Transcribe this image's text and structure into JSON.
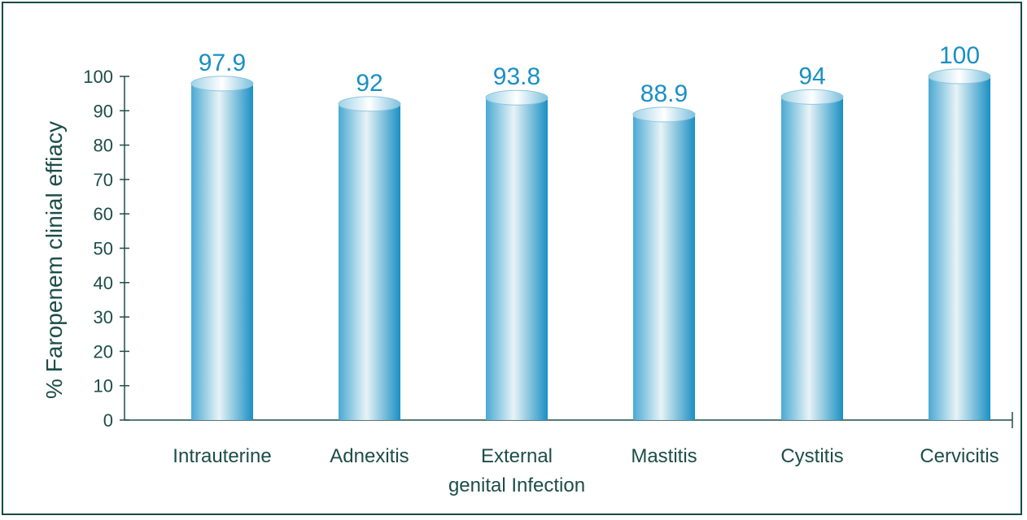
{
  "chart_data": {
    "type": "bar",
    "categories": [
      "Intrauterine",
      "Adnexitis",
      "External genital Infection",
      "Mastitis",
      "Cystitis",
      "Cervicitis"
    ],
    "category_lines": [
      [
        "Intrauterine"
      ],
      [
        "Adnexitis"
      ],
      [
        "External",
        "genital Infection"
      ],
      [
        "Mastitis"
      ],
      [
        "Cystitis"
      ],
      [
        "Cervicitis"
      ]
    ],
    "values": [
      97.9,
      92,
      93.8,
      88.9,
      94,
      100
    ],
    "value_labels": [
      "97.9",
      "92",
      "93.8",
      "88.9",
      "94",
      "100"
    ],
    "title": "",
    "xlabel": "",
    "ylabel": "% Faropenem clinial effiacy",
    "ylim": [
      0,
      100
    ],
    "yticks": [
      0,
      10,
      20,
      30,
      40,
      50,
      60,
      70,
      80,
      90,
      100
    ],
    "grid": false,
    "legend": "none",
    "colors": {
      "bar_dark": "#1a8fc4",
      "bar_light": "#e8f3f6",
      "axis": "#1d4d47",
      "value_text": "#1a8fc4",
      "frame": "#174a42"
    }
  }
}
